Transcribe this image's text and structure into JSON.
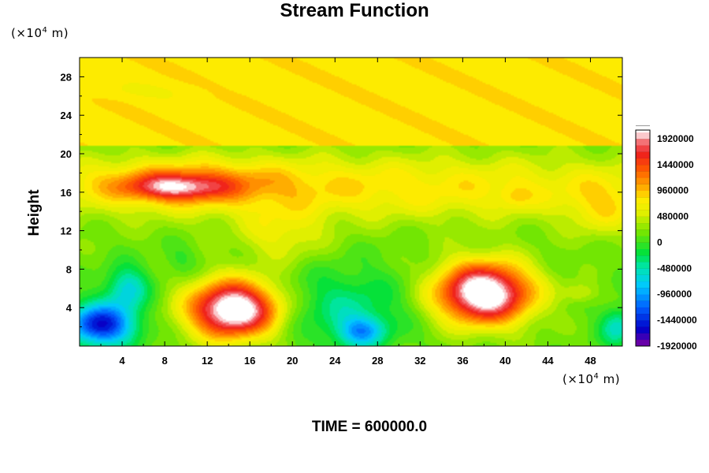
{
  "chart_data": {
    "type": "heatmap",
    "title": "Stream Function",
    "ylabel": "Height",
    "x_unit": {
      "base": "(×10",
      "exp": "4",
      "tail": " m)"
    },
    "y_unit": {
      "base": "(×10",
      "exp": "4",
      "tail": " m)"
    },
    "xlim": [
      0,
      51
    ],
    "ylim": [
      0,
      30
    ],
    "x_ticks": [
      4,
      8,
      12,
      16,
      20,
      24,
      28,
      32,
      36,
      40,
      44,
      48
    ],
    "y_ticks": [
      4,
      8,
      12,
      16,
      20,
      24,
      28
    ],
    "colorbar": {
      "range": [
        -1920000,
        2080000
      ],
      "tick_values": [
        1920000,
        1440000,
        960000,
        480000,
        0,
        -480000,
        -960000,
        -1440000,
        -1920000
      ],
      "tick_labels": [
        "1920000",
        "1440000",
        "960000",
        "480000",
        "0",
        "-480000",
        "-960000",
        "-1440000",
        "-1920000"
      ]
    },
    "field_features": [
      {
        "name": "upper uniform layer",
        "x_range": [
          0,
          51
        ],
        "y_range": [
          21,
          30
        ],
        "value": 800000
      },
      {
        "name": "upper jet maximum",
        "x": 9,
        "y": 16.5,
        "value": 1900000
      },
      {
        "name": "surface maximum left",
        "x": 14.5,
        "y": 3.8,
        "value": 2080000
      },
      {
        "name": "surface maximum right",
        "x": 38,
        "y": 5.5,
        "value": 2080000
      },
      {
        "name": "surface minimum left",
        "x": 2,
        "y": 2.2,
        "value": -1500000
      },
      {
        "name": "surface minimum center",
        "x": 26.5,
        "y": 1.5,
        "value": -700000
      }
    ]
  },
  "footer": {
    "time_label": "TIME = 600000.0"
  }
}
